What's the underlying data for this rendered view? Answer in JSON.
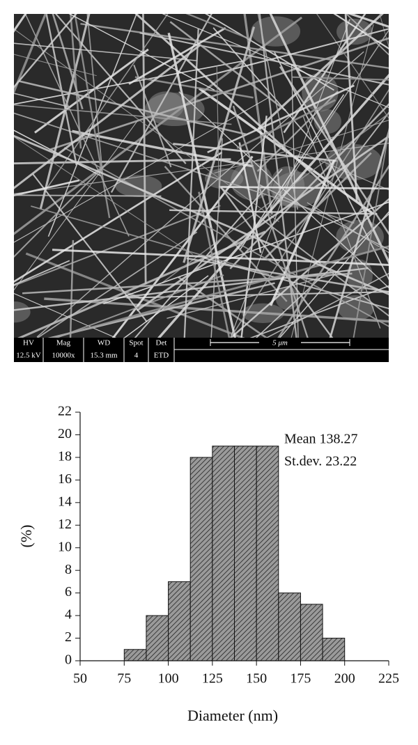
{
  "sem_image": {
    "info_bar": [
      {
        "label": "HV",
        "value": "12.5 kV"
      },
      {
        "label": "Mag",
        "value": "10000x"
      },
      {
        "label": "WD",
        "value": "15.3 mm"
      },
      {
        "label": "Spot",
        "value": "4"
      },
      {
        "label": "Det",
        "value": "ETD"
      }
    ],
    "scale_bar": "5 μm"
  },
  "chart_data": {
    "type": "histogram",
    "bins": [
      75,
      87.5,
      100,
      112.5,
      125,
      137.5,
      150,
      162.5,
      175,
      187.5,
      200
    ],
    "values": [
      1,
      4,
      7,
      18,
      19,
      19,
      19,
      6,
      5,
      2
    ],
    "color": "#9a9a9a",
    "xlabel": "Diameter (nm)",
    "ylabel": "(%)",
    "xlim": [
      50,
      225
    ],
    "xticks": [
      50,
      75,
      100,
      125,
      150,
      175,
      200,
      225
    ],
    "ylim": [
      0,
      22
    ],
    "yticks": [
      0,
      2,
      4,
      6,
      8,
      10,
      12,
      14,
      16,
      18,
      20,
      22
    ],
    "annotations": [
      "Mean 138.27",
      "St.dev. 23.22"
    ]
  }
}
